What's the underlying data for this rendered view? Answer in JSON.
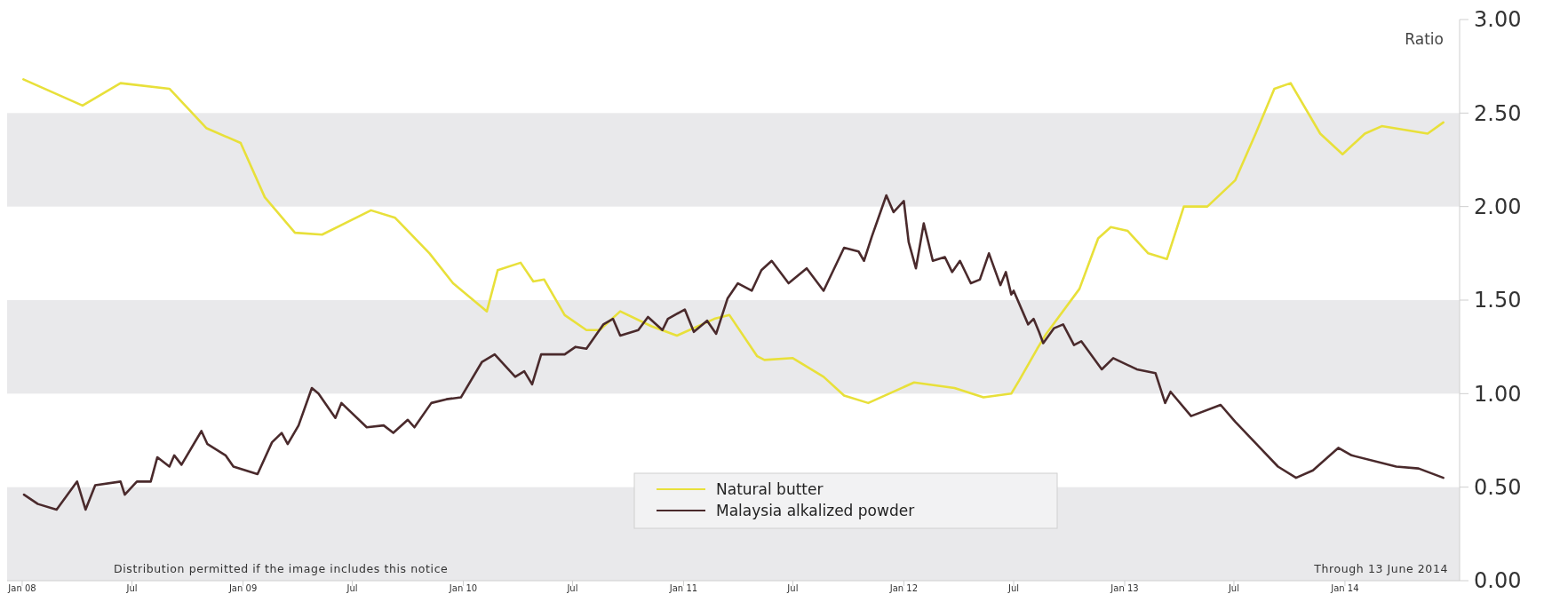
{
  "chart_data": {
    "type": "line",
    "ylabel": "Ratio",
    "annotations": [
      "Distribution permitted if the image includes this notice",
      "Through 13 June 2014"
    ],
    "xlim": [
      "2007-12-07",
      "2014-07-10"
    ],
    "xticks": [
      {
        "value": "2008-01-01",
        "label": "Jan 08"
      },
      {
        "value": "2008-07-01",
        "label": "Jul"
      },
      {
        "value": "2009-01-01",
        "label": "Jan 09"
      },
      {
        "value": "2009-07-01",
        "label": "Jul"
      },
      {
        "value": "2010-01-01",
        "label": "Jan 10"
      },
      {
        "value": "2010-07-01",
        "label": "Jul"
      },
      {
        "value": "2011-01-01",
        "label": "Jan 11"
      },
      {
        "value": "2011-07-01",
        "label": "Jul"
      },
      {
        "value": "2012-01-01",
        "label": "Jan 12"
      },
      {
        "value": "2012-07-01",
        "label": "Jul"
      },
      {
        "value": "2013-01-01",
        "label": "Jan 13"
      },
      {
        "value": "2013-07-01",
        "label": "Jul"
      },
      {
        "value": "2014-01-01",
        "label": "Jan 14"
      }
    ],
    "ylim": [
      0,
      3
    ],
    "yticks": [
      {
        "value": 0,
        "label": "0.00"
      },
      {
        "value": 0.5,
        "label": "0.50"
      },
      {
        "value": 1,
        "label": "1.00"
      },
      {
        "value": 1.5,
        "label": "1.50"
      },
      {
        "value": 2,
        "label": "2.00"
      },
      {
        "value": 2.5,
        "label": "2.50"
      },
      {
        "value": 3,
        "label": "3.00"
      }
    ],
    "bands": [
      {
        "axis": "y",
        "from": 0,
        "to": 0.5,
        "color": "#e9e9eb"
      },
      {
        "axis": "y",
        "from": 1,
        "to": 1.5,
        "color": "#e9e9eb"
      },
      {
        "axis": "y",
        "from": 2,
        "to": 2.5,
        "color": "#e9e9eb"
      }
    ],
    "legend": "bottom",
    "series": [
      {
        "name": "Natural butter",
        "color": "#e8e03a",
        "x": [
          "2008-01-03",
          "2008-04-10",
          "2008-06-12",
          "2008-09-01",
          "2008-11-01",
          "2008-12-28",
          "2009-02-06",
          "2009-03-28",
          "2009-05-12",
          "2009-08-01",
          "2009-09-10",
          "2009-11-06",
          "2009-12-15",
          "2010-02-09",
          "2010-02-27",
          "2010-04-06",
          "2010-04-27",
          "2010-05-15",
          "2010-06-18",
          "2010-07-24",
          "2010-08-15",
          "2010-09-18",
          "2010-11-09",
          "2010-12-21",
          "2011-02-21",
          "2011-03-18",
          "2011-05-03",
          "2011-05-15",
          "2011-07-01",
          "2011-08-21",
          "2011-09-24",
          "2011-11-03",
          "2012-01-18",
          "2012-03-25",
          "2012-05-12",
          "2012-06-27",
          "2012-07-10",
          "2012-08-09",
          "2012-08-24",
          "2012-10-18",
          "2012-11-18",
          "2012-12-09",
          "2013-01-06",
          "2013-02-09",
          "2013-03-12",
          "2013-04-09",
          "2013-05-18",
          "2013-07-03",
          "2013-08-06",
          "2013-09-06",
          "2013-10-03",
          "2013-11-21",
          "2013-12-28",
          "2014-02-03",
          "2014-03-03",
          "2014-05-18",
          "2014-06-13"
        ],
        "values": [
          2.68,
          2.54,
          2.66,
          2.63,
          2.42,
          2.34,
          2.05,
          1.86,
          1.85,
          1.98,
          1.94,
          1.75,
          1.59,
          1.44,
          1.66,
          1.7,
          1.6,
          1.61,
          1.42,
          1.34,
          1.34,
          1.44,
          1.36,
          1.31,
          1.4,
          1.42,
          1.2,
          1.18,
          1.19,
          1.09,
          0.99,
          0.95,
          1.06,
          1.03,
          0.98,
          1.0,
          1.07,
          1.24,
          1.32,
          1.56,
          1.83,
          1.89,
          1.87,
          1.75,
          1.72,
          2.0,
          2.0,
          2.14,
          2.39,
          2.63,
          2.66,
          2.39,
          2.28,
          2.39,
          2.43,
          2.39,
          2.45
        ]
      },
      {
        "name": "Malaysia alkalized powder",
        "color": "#4a2a2c",
        "x": [
          "2008-01-04",
          "2008-01-27",
          "2008-02-27",
          "2008-04-01",
          "2008-04-15",
          "2008-05-01",
          "2008-06-12",
          "2008-06-19",
          "2008-07-09",
          "2008-08-01",
          "2008-08-12",
          "2008-09-01",
          "2008-09-09",
          "2008-09-21",
          "2008-10-24",
          "2008-11-03",
          "2008-12-03",
          "2008-12-16",
          "2009-01-25",
          "2009-02-18",
          "2009-03-06",
          "2009-03-16",
          "2009-04-03",
          "2009-04-25",
          "2009-05-06",
          "2009-06-03",
          "2009-06-13",
          "2009-07-25",
          "2009-08-22",
          "2009-09-07",
          "2009-10-01",
          "2009-10-12",
          "2009-11-09",
          "2009-12-04",
          "2009-12-28",
          "2010-02-01",
          "2010-02-22",
          "2010-03-28",
          "2010-04-12",
          "2010-04-25",
          "2010-05-10",
          "2010-06-18",
          "2010-07-06",
          "2010-07-24",
          "2010-08-21",
          "2010-09-06",
          "2010-09-18",
          "2010-10-18",
          "2010-11-03",
          "2010-11-27",
          "2010-12-06",
          "2011-01-03",
          "2011-01-18",
          "2011-02-09",
          "2011-02-24",
          "2011-03-15",
          "2011-04-01",
          "2011-04-24",
          "2011-05-10",
          "2011-05-27",
          "2011-06-24",
          "2011-07-24",
          "2011-08-21",
          "2011-09-24",
          "2011-10-18",
          "2011-10-27",
          "2011-11-09",
          "2011-12-03",
          "2011-12-15",
          "2012-01-01",
          "2012-01-09",
          "2012-01-21",
          "2012-02-03",
          "2012-02-18",
          "2012-03-09",
          "2012-03-21",
          "2012-04-03",
          "2012-04-21",
          "2012-05-06",
          "2012-05-21",
          "2012-06-09",
          "2012-06-18",
          "2012-06-27",
          "2012-07-01",
          "2012-07-25",
          "2012-08-03",
          "2012-08-12",
          "2012-08-19",
          "2012-09-06",
          "2012-09-21",
          "2012-10-09",
          "2012-10-21",
          "2012-11-24",
          "2012-12-13",
          "2013-01-21",
          "2013-02-21",
          "2013-03-09",
          "2013-03-18",
          "2013-04-21",
          "2013-06-09",
          "2013-07-03",
          "2013-09-12",
          "2013-10-12",
          "2013-11-09",
          "2013-12-21",
          "2014-01-12",
          "2014-03-27",
          "2014-05-03",
          "2014-06-13"
        ],
        "values": [
          0.46,
          0.41,
          0.38,
          0.53,
          0.38,
          0.51,
          0.53,
          0.46,
          0.53,
          0.53,
          0.66,
          0.61,
          0.67,
          0.62,
          0.8,
          0.73,
          0.67,
          0.61,
          0.57,
          0.74,
          0.79,
          0.73,
          0.83,
          1.03,
          1.0,
          0.87,
          0.95,
          0.82,
          0.83,
          0.79,
          0.86,
          0.82,
          0.95,
          0.97,
          0.98,
          1.17,
          1.21,
          1.09,
          1.12,
          1.05,
          1.21,
          1.21,
          1.25,
          1.24,
          1.37,
          1.4,
          1.31,
          1.34,
          1.41,
          1.34,
          1.4,
          1.45,
          1.33,
          1.39,
          1.32,
          1.51,
          1.59,
          1.55,
          1.66,
          1.71,
          1.59,
          1.67,
          1.55,
          1.78,
          1.76,
          1.71,
          1.84,
          2.06,
          1.97,
          2.03,
          1.81,
          1.67,
          1.91,
          1.71,
          1.73,
          1.65,
          1.71,
          1.59,
          1.61,
          1.75,
          1.58,
          1.65,
          1.53,
          1.55,
          1.37,
          1.4,
          1.33,
          1.27,
          1.35,
          1.37,
          1.26,
          1.28,
          1.13,
          1.19,
          1.13,
          1.11,
          0.95,
          1.01,
          0.88,
          0.94,
          0.85,
          0.61,
          0.55,
          0.59,
          0.71,
          0.67,
          0.61,
          0.6,
          0.55
        ]
      }
    ]
  }
}
